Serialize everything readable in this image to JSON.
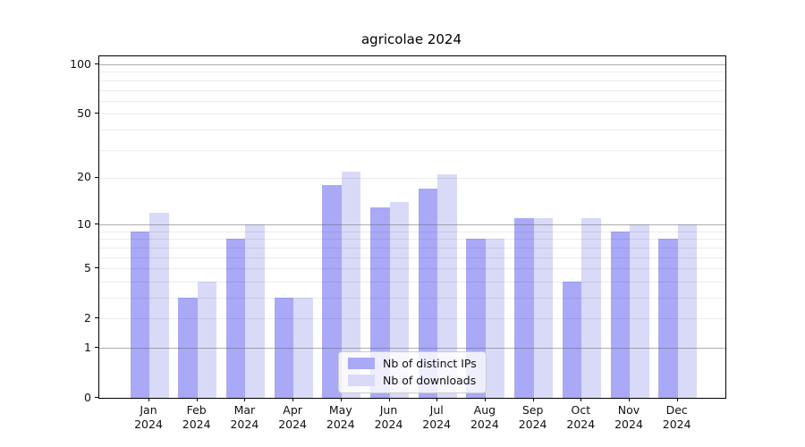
{
  "chart_data": {
    "type": "bar",
    "title": "agricolae 2024",
    "categories": [
      "Jan",
      "Feb",
      "Mar",
      "Apr",
      "May",
      "Jun",
      "Jul",
      "Aug",
      "Sep",
      "Oct",
      "Nov",
      "Dec"
    ],
    "x_sublabel": "2024",
    "series": [
      {
        "name": "Nb of distinct IPs",
        "color": "#a9a9f8",
        "values": [
          9,
          3,
          8,
          3,
          18,
          13,
          17,
          8,
          11,
          4,
          9,
          8
        ]
      },
      {
        "name": "Nb of downloads",
        "color": "#d9d9f8",
        "values": [
          12,
          4,
          10,
          3,
          22,
          14,
          21,
          8,
          11,
          11,
          10,
          10
        ]
      }
    ],
    "y_scale": "log1p",
    "ylim": [
      0,
      100
    ],
    "y_ticks": [
      0,
      1,
      2,
      5,
      10,
      20,
      50,
      100
    ],
    "y_major_grid": [
      1,
      10,
      100
    ],
    "y_minor_grid": [
      2,
      3,
      4,
      5,
      6,
      7,
      8,
      9,
      20,
      30,
      40,
      50,
      60,
      70,
      80,
      90
    ],
    "grid": true,
    "legend_position": "inside-bottom-center",
    "xlabel": "",
    "ylabel": ""
  }
}
